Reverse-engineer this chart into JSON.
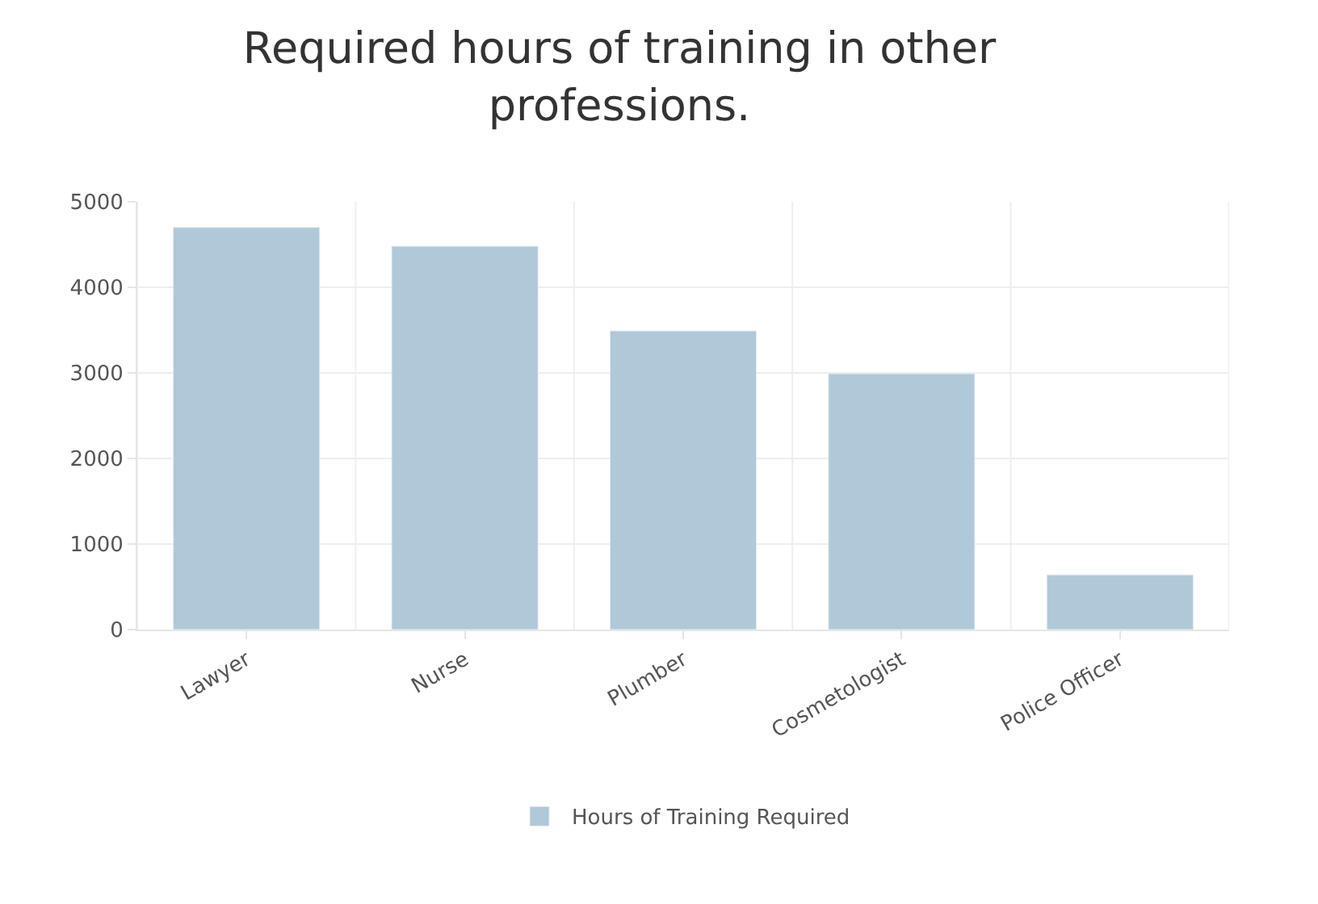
{
  "chart_data": {
    "type": "bar",
    "title": "Required hours of training in other professions.",
    "categories": [
      "Lawyer",
      "Nurse",
      "Plumber",
      "Cosmetologist",
      "Police Officer"
    ],
    "series": [
      {
        "name": "Hours of Training Required",
        "color": "#b0c8d8",
        "values": [
          4700,
          4480,
          3490,
          2990,
          640
        ]
      }
    ],
    "ylim": [
      0,
      5000
    ],
    "yticks": [
      0,
      1000,
      2000,
      3000,
      4000,
      5000
    ],
    "grid": true,
    "legend": "bottom"
  }
}
